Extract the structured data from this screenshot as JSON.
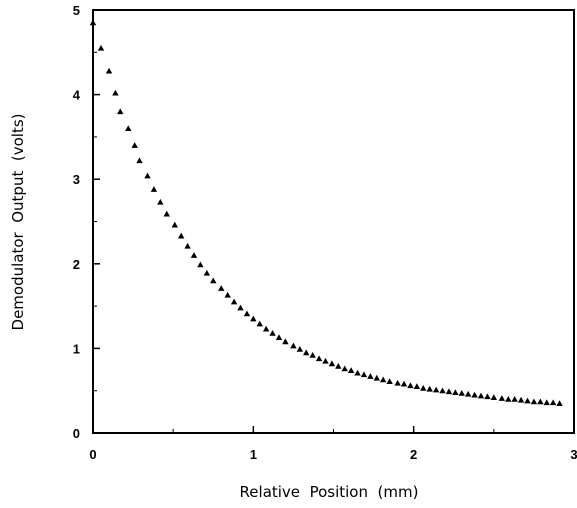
{
  "chart_data": {
    "type": "scatter",
    "title": "",
    "xlabel": "Relative  Position  (mm)",
    "ylabel": "Demodulator  Output  (volts)",
    "xlim": [
      0,
      3
    ],
    "ylim": [
      0,
      5
    ],
    "xticks": [
      0,
      1,
      2,
      3
    ],
    "yticks": [
      0,
      1,
      2,
      3,
      4,
      5
    ],
    "xtick_labels": [
      "0",
      "1",
      "2",
      "3"
    ],
    "ytick_labels": [
      "0",
      "1",
      "2",
      "3",
      "4",
      "5"
    ],
    "grid": false,
    "marker": "triangle",
    "marker_color": "#000000",
    "series": [
      {
        "x": [
          0.0,
          0.05,
          0.1,
          0.14,
          0.17,
          0.22,
          0.26,
          0.29,
          0.34,
          0.38,
          0.42,
          0.46,
          0.51,
          0.55,
          0.59,
          0.63,
          0.67,
          0.71,
          0.75,
          0.8,
          0.84,
          0.88,
          0.92,
          0.96,
          1.0,
          1.04,
          1.08,
          1.12,
          1.16,
          1.2,
          1.25,
          1.29,
          1.33,
          1.37,
          1.41,
          1.45,
          1.49,
          1.53,
          1.57,
          1.61,
          1.65,
          1.69,
          1.73,
          1.77,
          1.81,
          1.85,
          1.9,
          1.94,
          1.98,
          2.02,
          2.06,
          2.1,
          2.14,
          2.18,
          2.22,
          2.26,
          2.3,
          2.34,
          2.38,
          2.42,
          2.46,
          2.5,
          2.55,
          2.59,
          2.63,
          2.67,
          2.71,
          2.75,
          2.79,
          2.83,
          2.87,
          2.91
        ],
        "y": [
          4.85,
          4.55,
          4.28,
          4.02,
          3.8,
          3.6,
          3.4,
          3.22,
          3.04,
          2.88,
          2.73,
          2.59,
          2.46,
          2.33,
          2.21,
          2.1,
          1.99,
          1.89,
          1.8,
          1.71,
          1.63,
          1.55,
          1.48,
          1.41,
          1.35,
          1.29,
          1.23,
          1.18,
          1.13,
          1.08,
          1.03,
          0.99,
          0.95,
          0.92,
          0.88,
          0.85,
          0.82,
          0.79,
          0.76,
          0.74,
          0.71,
          0.69,
          0.67,
          0.65,
          0.63,
          0.61,
          0.59,
          0.58,
          0.56,
          0.55,
          0.53,
          0.52,
          0.51,
          0.5,
          0.49,
          0.48,
          0.47,
          0.46,
          0.45,
          0.44,
          0.43,
          0.42,
          0.41,
          0.4,
          0.4,
          0.39,
          0.38,
          0.37,
          0.37,
          0.36,
          0.36,
          0.35
        ]
      }
    ]
  }
}
